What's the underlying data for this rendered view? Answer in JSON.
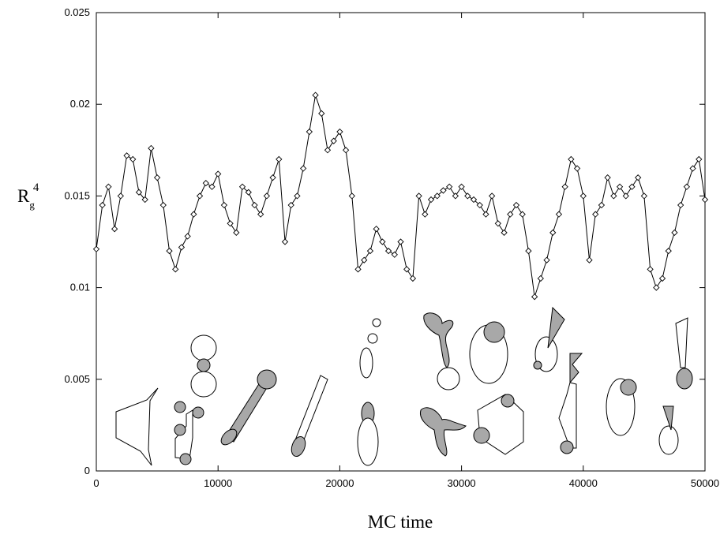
{
  "chart_data": {
    "type": "line",
    "xlabel": "MC time",
    "ylabel": {
      "base": "R",
      "sub": "g",
      "sup": "4"
    },
    "xlim": [
      0,
      50000
    ],
    "ylim": [
      0,
      0.025
    ],
    "xticks": [
      0,
      10000,
      20000,
      30000,
      40000,
      50000
    ],
    "yticks": [
      0,
      0.005,
      0.01,
      0.015,
      0.02,
      0.025
    ],
    "marker": "diamond",
    "color": "#000000",
    "x": [
      0,
      500,
      1000,
      1500,
      2000,
      2500,
      3000,
      3500,
      4000,
      4500,
      5000,
      5500,
      6000,
      6500,
      7000,
      7500,
      8000,
      8500,
      9000,
      9500,
      10000,
      10500,
      11000,
      11500,
      12000,
      12500,
      13000,
      13500,
      14000,
      14500,
      15000,
      15500,
      16000,
      16500,
      17000,
      17500,
      18000,
      18500,
      19000,
      19500,
      20000,
      20500,
      21000,
      21500,
      22000,
      22500,
      23000,
      23500,
      24000,
      24500,
      25000,
      25500,
      26000,
      26500,
      27000,
      27500,
      28000,
      28500,
      29000,
      29500,
      30000,
      30500,
      31000,
      31500,
      32000,
      32500,
      33000,
      33500,
      34000,
      34500,
      35000,
      35500,
      36000,
      36500,
      37000,
      37500,
      38000,
      38500,
      39000,
      39500,
      40000,
      40500,
      41000,
      41500,
      42000,
      42500,
      43000,
      43500,
      44000,
      44500,
      45000,
      45500,
      46000,
      46500,
      47000,
      47500,
      48000,
      48500,
      49000,
      49500,
      50000
    ],
    "values": [
      0.0121,
      0.0145,
      0.0155,
      0.0132,
      0.015,
      0.0172,
      0.017,
      0.0152,
      0.0148,
      0.0176,
      0.016,
      0.0145,
      0.012,
      0.011,
      0.0122,
      0.0128,
      0.014,
      0.015,
      0.0157,
      0.0155,
      0.0162,
      0.0145,
      0.0135,
      0.013,
      0.0155,
      0.0152,
      0.0145,
      0.014,
      0.015,
      0.016,
      0.017,
      0.0125,
      0.0145,
      0.015,
      0.0165,
      0.0185,
      0.0205,
      0.0195,
      0.0175,
      0.018,
      0.0185,
      0.0175,
      0.015,
      0.011,
      0.0115,
      0.012,
      0.0132,
      0.0125,
      0.012,
      0.0118,
      0.0125,
      0.011,
      0.0105,
      0.015,
      0.014,
      0.0148,
      0.015,
      0.0153,
      0.0155,
      0.015,
      0.0155,
      0.015,
      0.0148,
      0.0145,
      0.014,
      0.015,
      0.0135,
      0.013,
      0.014,
      0.0145,
      0.014,
      0.012,
      0.0095,
      0.0105,
      0.0115,
      0.013,
      0.014,
      0.0155,
      0.017,
      0.0165,
      0.015,
      0.0115,
      0.014,
      0.0145,
      0.016,
      0.015,
      0.0155,
      0.015,
      0.0155,
      0.016,
      0.015,
      0.011,
      0.01,
      0.0105,
      0.012,
      0.013,
      0.0145,
      0.0155,
      0.0165,
      0.017,
      0.0148
    ]
  }
}
